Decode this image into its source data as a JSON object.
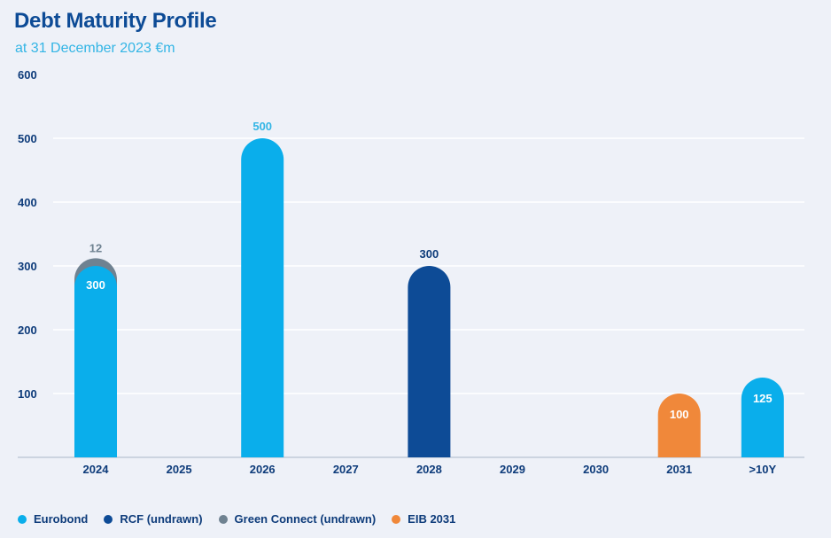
{
  "chart_data": {
    "type": "bar",
    "title": "Debt Maturity Profile",
    "subtitle": "at 31 December 2023 €m",
    "categories": [
      "2024",
      "2025",
      "2026",
      "2027",
      "2028",
      "2029",
      "2030",
      "2031",
      ">10Y"
    ],
    "series": [
      {
        "name": "Eurobond",
        "color": "#0aaeeb",
        "values": [
          300,
          0,
          500,
          0,
          0,
          0,
          0,
          0,
          125
        ]
      },
      {
        "name": "RCF (undrawn)",
        "color": "#0d4b96",
        "values": [
          0,
          0,
          0,
          0,
          300,
          0,
          0,
          0,
          0
        ]
      },
      {
        "name": "Green Connect (undrawn)",
        "color": "#6f8291",
        "values": [
          12,
          0,
          0,
          0,
          0,
          0,
          0,
          0,
          0
        ]
      },
      {
        "name": "EIB 2031",
        "color": "#f0883a",
        "values": [
          0,
          0,
          0,
          0,
          0,
          0,
          0,
          100,
          0
        ]
      }
    ],
    "stacked": true,
    "yticks": [
      100,
      200,
      300,
      400,
      500,
      600
    ],
    "ylim": [
      0,
      600
    ],
    "grid": true,
    "legend_position": "bottom-left"
  },
  "colors": {
    "title": "#0d4b96",
    "subtitle": "#33b5e5",
    "axis_text": "#0d3b7a",
    "grid": "#ffffff",
    "background": "#eef1f8",
    "label_outside_light": "#33b5e5",
    "label_outside_dark": "#0d3b7a",
    "label_outside_grey": "#6f8291"
  }
}
